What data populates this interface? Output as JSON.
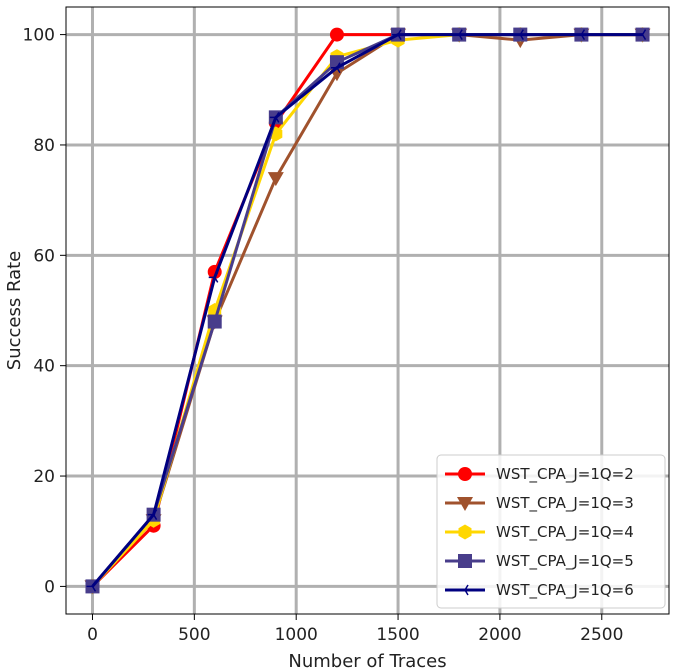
{
  "chart_data": {
    "type": "line",
    "xlabel": "Number of Traces",
    "ylabel": "Success Rate",
    "xlim": [
      -130,
      2830
    ],
    "ylim": [
      -5,
      105
    ],
    "xticks": [
      0,
      500,
      1000,
      1500,
      2000,
      2500
    ],
    "yticks": [
      0,
      20,
      40,
      60,
      80,
      100
    ],
    "grid": true,
    "legend_position": "bottom-right",
    "x": [
      0,
      300,
      600,
      900,
      1200,
      1500,
      1800,
      2100,
      2400,
      2700
    ],
    "series": [
      {
        "name": "WST_CPA_J=1Q=2",
        "color": "#ff0000",
        "marker": "circle",
        "values": [
          0,
          11,
          57,
          84,
          100,
          100,
          100,
          100,
          100,
          100
        ]
      },
      {
        "name": "WST_CPA_J=1Q=3",
        "color": "#a0522d",
        "marker": "triangle-down",
        "values": [
          0,
          12,
          48,
          74,
          93,
          100,
          100,
          99,
          100,
          100
        ]
      },
      {
        "name": "WST_CPA_J=1Q=4",
        "color": "#ffd700",
        "marker": "hexagon",
        "values": [
          0,
          12,
          50,
          82,
          96,
          99,
          100,
          100,
          100,
          100
        ]
      },
      {
        "name": "WST_CPA_J=1Q=5",
        "color": "#483d8b",
        "marker": "square",
        "values": [
          0,
          13,
          48,
          85,
          95,
          100,
          100,
          100,
          100,
          100
        ]
      },
      {
        "name": "WST_CPA_J=1Q=6",
        "color": "#000080",
        "marker": "tri-left",
        "values": [
          0,
          13,
          56,
          85,
          94,
          100,
          100,
          100,
          100,
          100
        ]
      }
    ]
  }
}
